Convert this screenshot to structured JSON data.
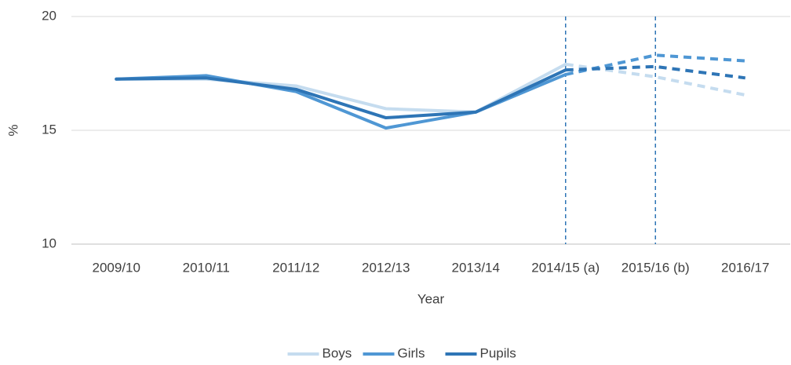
{
  "chart_data": {
    "type": "line",
    "x_label": "Year",
    "y_label": "%",
    "categories": [
      "2009/10",
      "2010/11",
      "2011/12",
      "2012/13",
      "2013/14",
      "2014/15 (a)",
      "2015/16 (b)",
      "2016/17"
    ],
    "series": [
      {
        "name": "Boys",
        "color": "#c5dcef",
        "values": [
          17.25,
          17.25,
          16.95,
          15.95,
          15.8,
          17.9,
          17.35,
          16.55
        ]
      },
      {
        "name": "Girls",
        "color": "#4f97d4",
        "values": [
          17.25,
          17.4,
          16.7,
          15.1,
          15.8,
          17.45,
          18.3,
          18.05
        ]
      },
      {
        "name": "Pupils",
        "color": "#2e75b6",
        "values": [
          17.25,
          17.3,
          16.8,
          15.55,
          15.8,
          17.65,
          17.8,
          17.3
        ]
      }
    ],
    "dashed_from": 5,
    "reference_lines": [
      5,
      6
    ],
    "reference_color": "#2e75b6",
    "ylim": [
      10,
      20
    ],
    "yticks": [
      10,
      15,
      20
    ],
    "grid": true,
    "legend": "bottom"
  }
}
